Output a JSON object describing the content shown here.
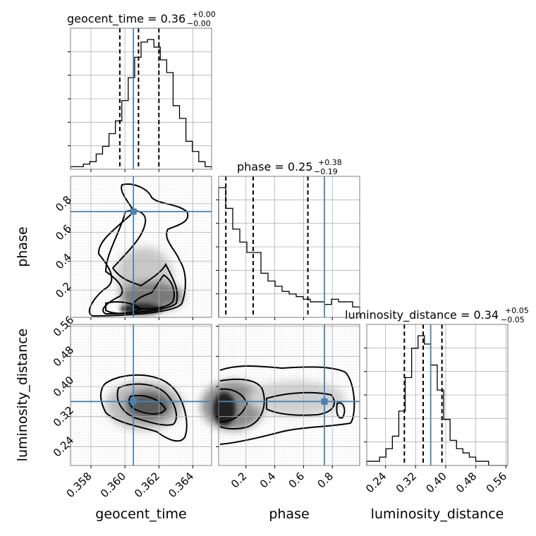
{
  "chart_data": {
    "type": "corner",
    "parameters": [
      {
        "name": "geocent_time",
        "range": [
          0.3568,
          0.3651
        ],
        "ticks": [
          0.358,
          0.36,
          0.362,
          0.364
        ],
        "tick_labels": [
          "0.358",
          "0.360",
          "0.362",
          "0.364"
        ],
        "truth": 0.3605,
        "quantiles": [
          0.3597,
          0.3608,
          0.362
        ]
      },
      {
        "name": "phase",
        "range": [
          0.01,
          0.99
        ],
        "ticks": [
          0.2,
          0.4,
          0.6,
          0.8
        ],
        "tick_labels": [
          "0.2",
          "0.4",
          "0.6",
          "0.8"
        ],
        "truth": 0.745,
        "quantiles": [
          0.06,
          0.25,
          0.63
        ]
      },
      {
        "name": "luminosity_distance",
        "range": [
          0.19,
          0.565
        ],
        "ticks": [
          0.24,
          0.32,
          0.4,
          0.48,
          0.56
        ],
        "tick_labels": [
          "0.24",
          "0.32",
          "0.40",
          "0.48",
          "0.56"
        ],
        "truth": 0.36,
        "quantiles": [
          0.29,
          0.34,
          0.39
        ]
      }
    ],
    "titles": [
      {
        "base": "geocent_time = 0.36",
        "plus": "+0.00",
        "minus": "−0.00"
      },
      {
        "base": "phase = 0.25",
        "plus": "+0.38",
        "minus": "−0.19"
      },
      {
        "base": "luminosity_distance = 0.34",
        "plus": "+0.05",
        "minus": "−0.05"
      }
    ],
    "histograms": [
      [
        1,
        1,
        2,
        3,
        6,
        9,
        14,
        19,
        27,
        36,
        44,
        50,
        51,
        48,
        43,
        38,
        25,
        20,
        11,
        7,
        3,
        1
      ],
      [
        50,
        42,
        34,
        29,
        25,
        25,
        17,
        14,
        12,
        10,
        9,
        8,
        7,
        6,
        6,
        5,
        7,
        6,
        6,
        4
      ],
      [
        1,
        1,
        2,
        4,
        7,
        13,
        21,
        28,
        31,
        29,
        24,
        18,
        11,
        6,
        4,
        3,
        2,
        1,
        1,
        0,
        0,
        0
      ]
    ],
    "colors": {
      "truth": "#4682b4",
      "hist": "#000000",
      "grid": "#b0b0b0",
      "quantile": "#000000"
    }
  }
}
